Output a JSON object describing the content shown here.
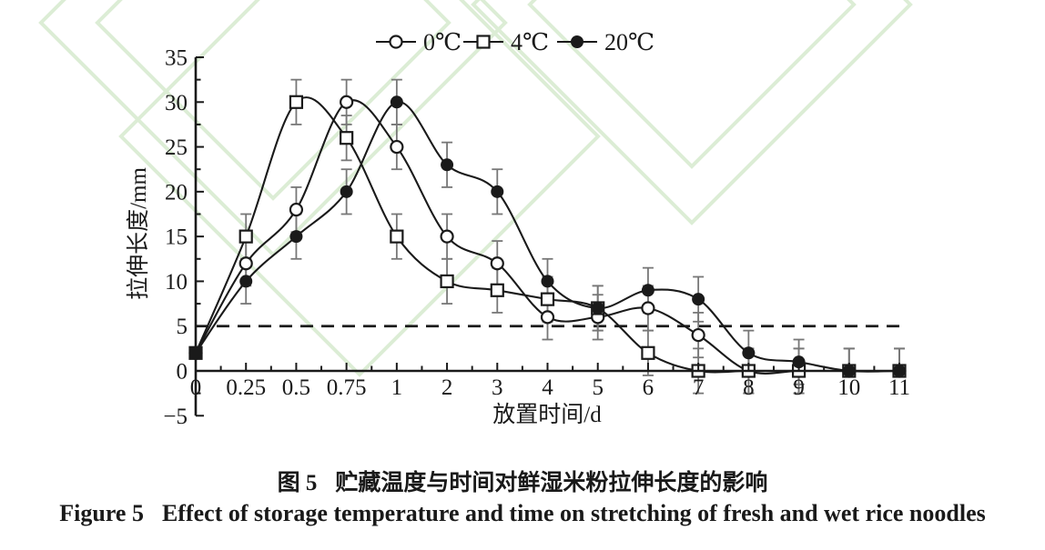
{
  "figure": {
    "caption_zh_label": "图 5",
    "caption_zh_text": "贮藏温度与时间对鲜湿米粉拉伸长度的影响",
    "caption_en_label": "Figure 5",
    "caption_en_text": "Effect of storage temperature and time on stretching of fresh and wet rice noodles"
  },
  "colors": {
    "ink": "#1a1a1a",
    "error_bar": "#777777",
    "background": "#ffffff"
  },
  "chart_data": {
    "type": "line",
    "curve": "smooth",
    "grid": false,
    "legend_position": "top-center",
    "xlabel": "放置时间/d",
    "ylabel": "拉伸长度/mm",
    "ylim": [
      -5,
      35
    ],
    "x_categories": [
      0,
      0.25,
      0.5,
      0.75,
      1,
      2,
      3,
      4,
      5,
      6,
      7,
      8,
      9,
      10,
      11
    ],
    "x_tick_labels": [
      "0",
      "0.25",
      "0.5",
      "0.75",
      "1",
      "2",
      "3",
      "4",
      "5",
      "6",
      "7",
      "8",
      "9",
      "10",
      "11"
    ],
    "y_ticks": [
      -5,
      0,
      5,
      10,
      15,
      20,
      25,
      30,
      35
    ],
    "y_tick_labels": [
      "−5",
      "0",
      "5",
      "10",
      "15",
      "20",
      "25",
      "30",
      "35"
    ],
    "y_minor_step": 2.5,
    "series": [
      {
        "name": "0℃",
        "marker": "circle-open",
        "color": "#1a1a1a",
        "values": [
          2,
          12,
          18,
          30,
          25,
          15,
          12,
          6,
          6,
          7,
          4,
          0,
          0,
          0,
          0
        ]
      },
      {
        "name": "4℃",
        "marker": "square-open",
        "color": "#1a1a1a",
        "values": [
          2,
          15,
          30,
          26,
          15,
          10,
          9,
          8,
          7,
          2,
          0,
          0,
          0,
          0,
          0
        ]
      },
      {
        "name": "20℃",
        "marker": "circle-filled",
        "color": "#1a1a1a",
        "values": [
          2,
          10,
          15,
          20,
          30,
          23,
          20,
          10,
          7,
          9,
          8,
          2,
          1,
          0,
          0
        ]
      }
    ],
    "error_bar": {
      "magnitude": 2.5,
      "skip_first_point": true,
      "up_only_categories": [
        10,
        11
      ],
      "color": "#777777"
    },
    "reference_line": {
      "y": 5,
      "style": "dashed",
      "color": "#1a1a1a"
    },
    "origin_overlap_marker": {
      "category": 0,
      "value": 2,
      "shape": "square-filled"
    }
  }
}
